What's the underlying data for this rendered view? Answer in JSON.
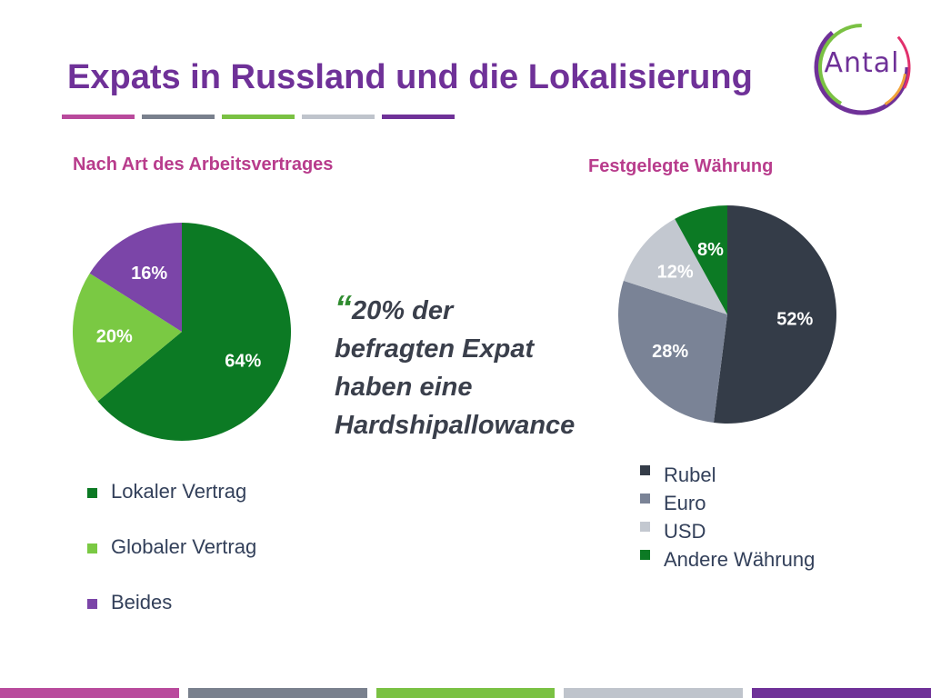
{
  "header": {
    "title": "Expats in Russland und die Lokalisierung",
    "title_bar_colors": [
      "#b94a9c",
      "#79808d",
      "#7ac143",
      "#bfc4cc",
      "#6f3198"
    ]
  },
  "logo": {
    "text": "Antal"
  },
  "quote": {
    "mark": "“",
    "line1": "20% der",
    "line2": "befragten Expat",
    "line3": "haben eine",
    "line4": "Hardshipallowance"
  },
  "chart_data": [
    {
      "type": "pie",
      "title": "Nach Art des Arbeitsvertrages",
      "categories": [
        "Lokaler Vertrag",
        "Globaler Vertrag",
        "Beides"
      ],
      "values": [
        64,
        20,
        16
      ],
      "labels": [
        "64%",
        "20%",
        "16%"
      ],
      "colors": [
        "#0c7a24",
        "#7ac943",
        "#7b45a8"
      ],
      "label_colors": [
        "#ffffff",
        "#ffffff",
        "#ffffff"
      ],
      "legend_placement": "bottom"
    },
    {
      "type": "pie",
      "title": "Festgelegte Währung",
      "categories": [
        "Rubel",
        "Euro",
        "USD",
        "Andere Währung"
      ],
      "values": [
        52,
        28,
        12,
        8
      ],
      "labels": [
        "52%",
        "28%",
        "12%",
        "8%"
      ],
      "colors": [
        "#343c48",
        "#7a8396",
        "#c3c8d0",
        "#0c7a24"
      ],
      "label_colors": [
        "#ffffff",
        "#ffffff",
        "#ffffff",
        "#ffffff"
      ],
      "legend_placement": "bottom"
    }
  ],
  "footer": {
    "bar_colors": [
      "#b94a9c",
      "#79808d",
      "#7ac143",
      "#bfc4cc",
      "#6f3198"
    ]
  }
}
